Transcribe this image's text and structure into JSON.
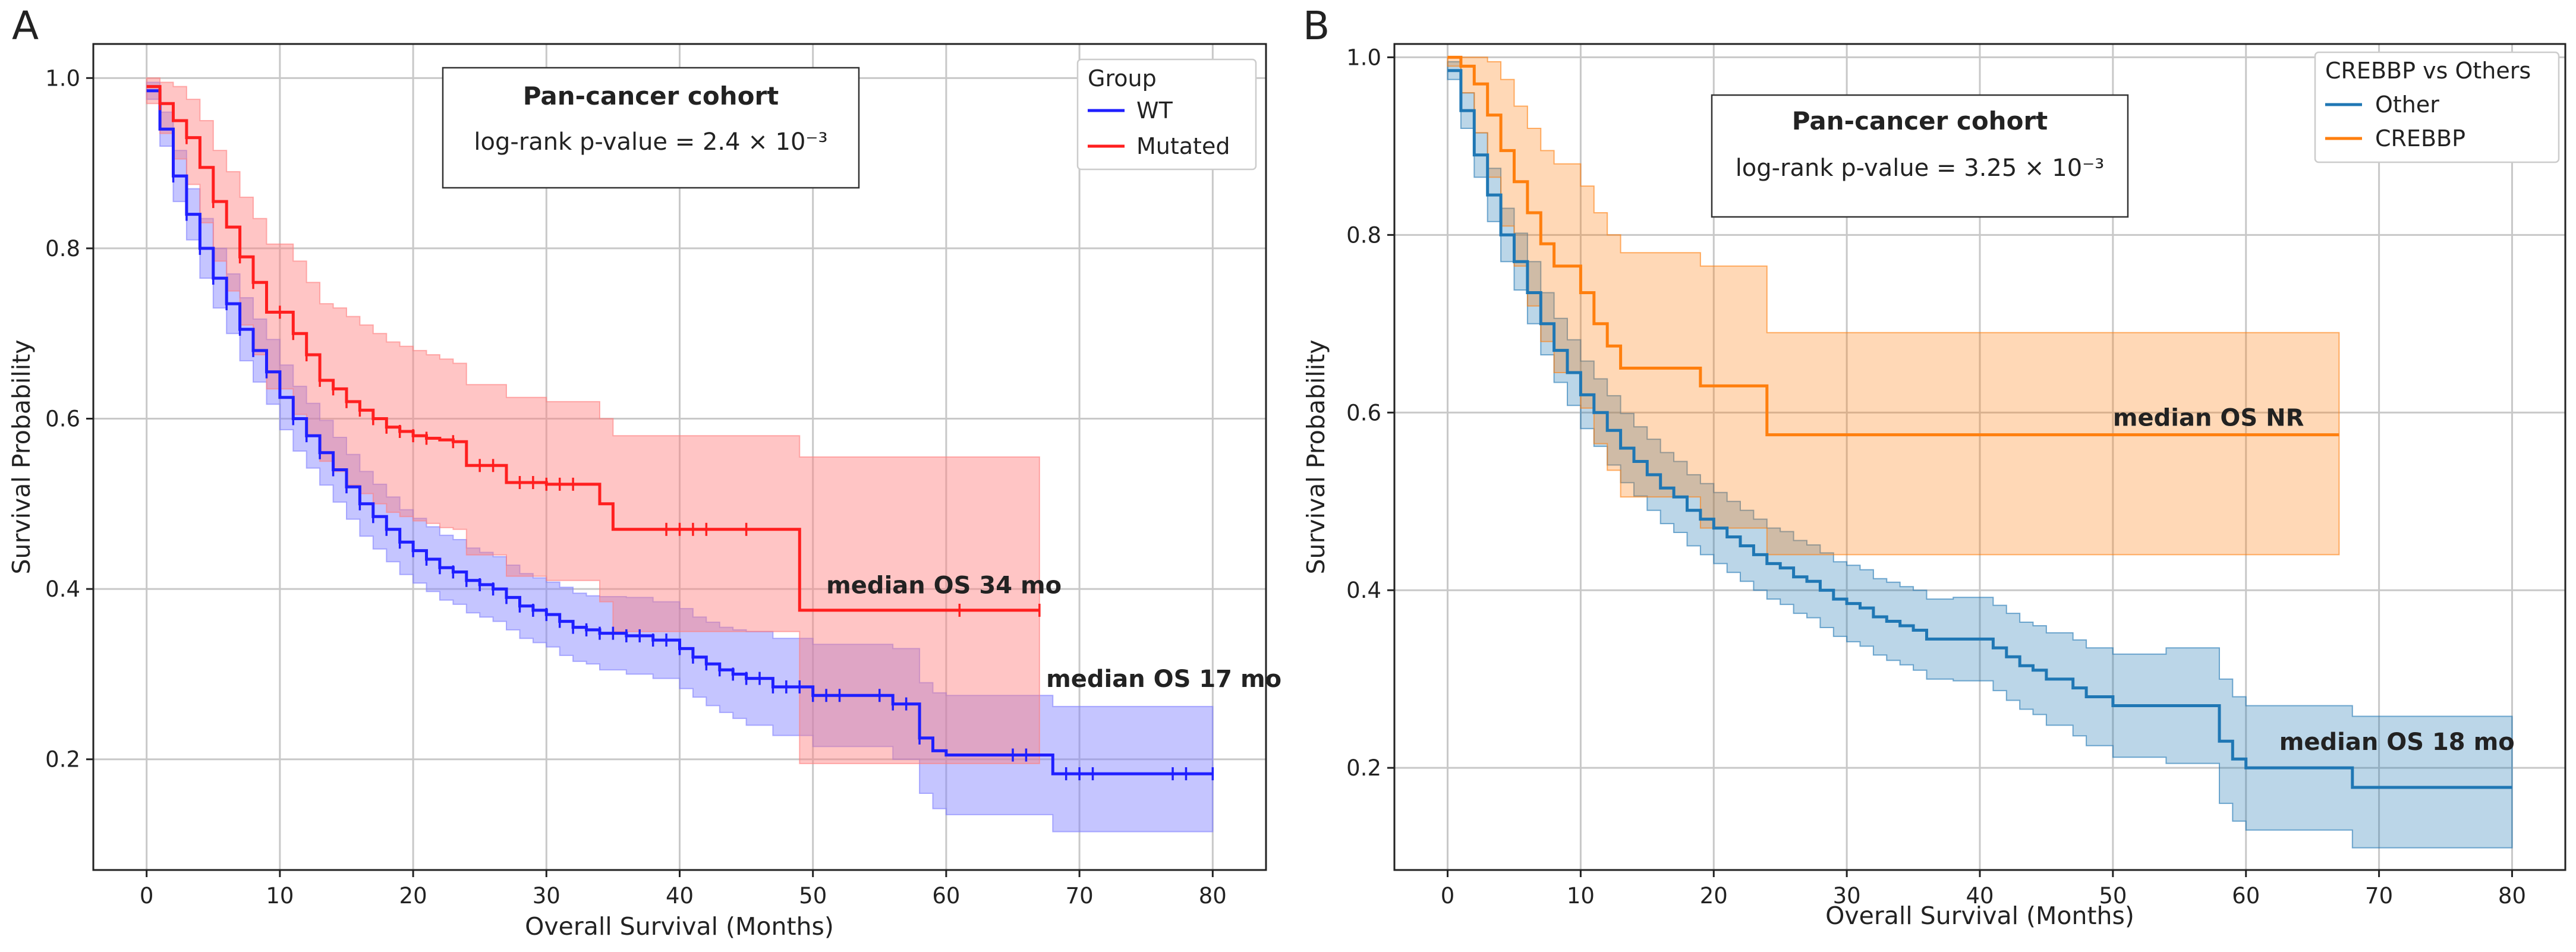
{
  "colors": {
    "A_WT": "#1f1fff",
    "A_Mutated": "#ff1f1f",
    "A_WT_band": "#7f7fff",
    "A_Mutated_band": "#ff7f7f",
    "B_Other": "#1f77b4",
    "B_CREBBP": "#ff7f0e"
  },
  "chart_data": [
    {
      "panel": "A",
      "type": "line",
      "subtype": "kaplan-meier",
      "xlabel": "Overall Survival (Months)",
      "ylabel": "Survival Probability",
      "xlim": [
        -4,
        84
      ],
      "ylim": [
        0.07,
        1.04
      ],
      "xticks": [
        0,
        10,
        20,
        30,
        40,
        50,
        60,
        70,
        80
      ],
      "yticks": [
        0.2,
        0.4,
        0.6,
        0.8,
        1.0
      ],
      "grid": true,
      "annotation_box": {
        "title": "Pan-cancer cohort",
        "text": "log-rank p-value = 2.4 × 10⁻³"
      },
      "legend": {
        "title": "Group",
        "entries": [
          "WT",
          "Mutated"
        ],
        "placement": "top-right"
      },
      "medians": [
        {
          "text": "median OS 34 mo",
          "x": 51,
          "y": 0.395
        },
        {
          "text": "median OS 17 mo",
          "x": 67.5,
          "y": 0.285
        }
      ],
      "series": [
        {
          "name": "WT",
          "color": "#1f1fff",
          "band_color": "#7f7fff",
          "x": [
            0,
            1,
            2,
            3,
            4,
            5,
            6,
            7,
            8,
            9,
            10,
            11,
            12,
            13,
            14,
            15,
            16,
            17,
            18,
            19,
            20,
            21,
            22,
            23,
            24,
            25,
            26,
            27,
            28,
            29,
            30,
            31,
            32,
            33,
            34,
            36,
            38,
            40,
            41,
            42,
            43,
            44,
            45,
            47,
            50,
            56,
            58,
            59,
            60,
            68,
            80
          ],
          "y": [
            0.985,
            0.94,
            0.885,
            0.84,
            0.8,
            0.765,
            0.735,
            0.705,
            0.68,
            0.655,
            0.625,
            0.6,
            0.58,
            0.56,
            0.54,
            0.52,
            0.5,
            0.485,
            0.47,
            0.455,
            0.445,
            0.435,
            0.425,
            0.42,
            0.41,
            0.405,
            0.4,
            0.39,
            0.38,
            0.375,
            0.37,
            0.362,
            0.355,
            0.352,
            0.348,
            0.345,
            0.34,
            0.33,
            0.32,
            0.312,
            0.305,
            0.3,
            0.295,
            0.285,
            0.275,
            0.265,
            0.225,
            0.21,
            0.205,
            0.183,
            0.183
          ],
          "ci_lower": [
            0.975,
            0.92,
            0.855,
            0.81,
            0.765,
            0.73,
            0.7,
            0.668,
            0.643,
            0.617,
            0.587,
            0.562,
            0.542,
            0.522,
            0.502,
            0.482,
            0.462,
            0.447,
            0.432,
            0.417,
            0.407,
            0.397,
            0.387,
            0.382,
            0.372,
            0.367,
            0.362,
            0.352,
            0.342,
            0.337,
            0.332,
            0.322,
            0.315,
            0.312,
            0.305,
            0.3,
            0.295,
            0.283,
            0.273,
            0.263,
            0.255,
            0.248,
            0.24,
            0.228,
            0.215,
            0.2,
            0.16,
            0.142,
            0.135,
            0.115,
            0.115
          ],
          "ci_upper": [
            0.995,
            0.96,
            0.915,
            0.87,
            0.835,
            0.8,
            0.77,
            0.742,
            0.717,
            0.693,
            0.663,
            0.638,
            0.618,
            0.598,
            0.578,
            0.558,
            0.538,
            0.523,
            0.508,
            0.493,
            0.483,
            0.473,
            0.463,
            0.458,
            0.448,
            0.443,
            0.438,
            0.428,
            0.418,
            0.413,
            0.408,
            0.402,
            0.395,
            0.392,
            0.391,
            0.39,
            0.385,
            0.377,
            0.367,
            0.361,
            0.355,
            0.352,
            0.35,
            0.342,
            0.335,
            0.33,
            0.29,
            0.278,
            0.275,
            0.262,
            0.262
          ],
          "censored": [
            2,
            3,
            4,
            5,
            6,
            7,
            8,
            9,
            11,
            12,
            13,
            14,
            15,
            16,
            17,
            18,
            19,
            20,
            21,
            22,
            23,
            24,
            25,
            26,
            27,
            28,
            29,
            30,
            31,
            32,
            33,
            34,
            35,
            36,
            37,
            38,
            39,
            40,
            41,
            42,
            43,
            44,
            45,
            46,
            47,
            48,
            49,
            50,
            51,
            52,
            55,
            56,
            57,
            58,
            65,
            66,
            69,
            70,
            71,
            77,
            78,
            80
          ]
        },
        {
          "name": "Mutated",
          "color": "#ff1f1f",
          "band_color": "#ff7f7f",
          "x": [
            0,
            1,
            2,
            3,
            4,
            5,
            6,
            7,
            8,
            9,
            11,
            12,
            13,
            14,
            15,
            16,
            17,
            18,
            19,
            20,
            21,
            22,
            23,
            24,
            27,
            30,
            34,
            35,
            49,
            67
          ],
          "y": [
            0.99,
            0.97,
            0.95,
            0.93,
            0.895,
            0.855,
            0.825,
            0.79,
            0.76,
            0.725,
            0.7,
            0.675,
            0.645,
            0.635,
            0.62,
            0.61,
            0.6,
            0.59,
            0.585,
            0.58,
            0.577,
            0.575,
            0.573,
            0.545,
            0.525,
            0.523,
            0.5,
            0.47,
            0.375,
            0.375
          ],
          "ci_lower": [
            0.97,
            0.935,
            0.905,
            0.875,
            0.83,
            0.785,
            0.75,
            0.71,
            0.675,
            0.635,
            0.605,
            0.58,
            0.55,
            0.538,
            0.522,
            0.512,
            0.5,
            0.49,
            0.485,
            0.48,
            0.477,
            0.472,
            0.47,
            0.44,
            0.415,
            0.41,
            0.385,
            0.35,
            0.195,
            0.195
          ],
          "ci_upper": [
            1.0,
            0.995,
            0.99,
            0.975,
            0.95,
            0.915,
            0.89,
            0.86,
            0.835,
            0.805,
            0.785,
            0.76,
            0.735,
            0.73,
            0.72,
            0.71,
            0.7,
            0.69,
            0.685,
            0.68,
            0.675,
            0.67,
            0.665,
            0.64,
            0.625,
            0.62,
            0.6,
            0.58,
            0.555,
            0.555
          ],
          "censored": [
            1,
            3,
            5,
            7,
            8,
            10,
            11,
            12,
            13,
            14,
            15,
            16,
            17,
            18,
            19,
            20,
            21,
            23,
            25,
            26,
            28,
            29,
            30,
            31,
            32,
            39,
            40,
            41,
            42,
            45,
            61,
            67
          ]
        }
      ]
    },
    {
      "panel": "B",
      "type": "line",
      "subtype": "kaplan-meier",
      "xlabel": "Overall Survival (Months)",
      "ylabel": "Survival Probability",
      "xlim": [
        -4,
        84
      ],
      "ylim": [
        0.085,
        1.015
      ],
      "xticks": [
        0,
        10,
        20,
        30,
        40,
        50,
        60,
        70,
        80
      ],
      "yticks": [
        0.2,
        0.4,
        0.6,
        0.8,
        1.0
      ],
      "grid": true,
      "annotation_box": {
        "title": "Pan-cancer cohort",
        "text": "log-rank p-value = 3.25 × 10⁻³"
      },
      "legend": {
        "title": "CREBBP  vs  Others",
        "entries": [
          "Other",
          "CREBBP"
        ],
        "placement": "top-right"
      },
      "medians": [
        {
          "text": "median OS NR",
          "x": 50,
          "y": 0.585
        },
        {
          "text": "median OS 18 mo",
          "x": 62.5,
          "y": 0.22
        }
      ],
      "series": [
        {
          "name": "Other",
          "color": "#1f77b4",
          "band_color": "#1f77b4",
          "x": [
            0,
            1,
            2,
            3,
            4,
            5,
            6,
            7,
            8,
            9,
            10,
            11,
            12,
            13,
            14,
            15,
            16,
            17,
            18,
            19,
            20,
            21,
            22,
            23,
            24,
            25,
            26,
            27,
            28,
            29,
            30,
            31,
            32,
            33,
            34,
            35,
            36,
            38,
            41,
            42,
            43,
            44,
            45,
            47,
            48,
            50,
            54,
            58,
            59,
            60,
            68,
            80
          ],
          "y": [
            0.985,
            0.94,
            0.89,
            0.845,
            0.8,
            0.77,
            0.735,
            0.7,
            0.67,
            0.645,
            0.62,
            0.6,
            0.58,
            0.56,
            0.545,
            0.53,
            0.515,
            0.505,
            0.49,
            0.48,
            0.47,
            0.46,
            0.45,
            0.44,
            0.43,
            0.425,
            0.415,
            0.41,
            0.4,
            0.39,
            0.385,
            0.38,
            0.37,
            0.365,
            0.36,
            0.355,
            0.345,
            0.345,
            0.335,
            0.325,
            0.315,
            0.31,
            0.3,
            0.29,
            0.28,
            0.27,
            0.27,
            0.23,
            0.21,
            0.2,
            0.178,
            0.178
          ],
          "ci_lower": [
            0.975,
            0.92,
            0.865,
            0.815,
            0.77,
            0.738,
            0.7,
            0.665,
            0.634,
            0.608,
            0.582,
            0.562,
            0.541,
            0.521,
            0.506,
            0.49,
            0.475,
            0.465,
            0.45,
            0.44,
            0.43,
            0.42,
            0.41,
            0.4,
            0.39,
            0.384,
            0.374,
            0.369,
            0.358,
            0.348,
            0.342,
            0.337,
            0.327,
            0.321,
            0.316,
            0.31,
            0.3,
            0.298,
            0.287,
            0.276,
            0.266,
            0.26,
            0.248,
            0.236,
            0.225,
            0.212,
            0.205,
            0.16,
            0.14,
            0.13,
            0.11,
            0.11
          ],
          "ci_upper": [
            0.995,
            0.96,
            0.915,
            0.875,
            0.83,
            0.802,
            0.77,
            0.735,
            0.706,
            0.682,
            0.658,
            0.638,
            0.619,
            0.599,
            0.584,
            0.57,
            0.555,
            0.545,
            0.53,
            0.52,
            0.51,
            0.5,
            0.49,
            0.48,
            0.47,
            0.466,
            0.456,
            0.451,
            0.442,
            0.432,
            0.428,
            0.423,
            0.413,
            0.409,
            0.404,
            0.4,
            0.39,
            0.392,
            0.383,
            0.374,
            0.364,
            0.36,
            0.352,
            0.344,
            0.335,
            0.328,
            0.335,
            0.3,
            0.28,
            0.27,
            0.258,
            0.258
          ]
        },
        {
          "name": "CREBBP",
          "color": "#ff7f0e",
          "band_color": "#ff7f0e",
          "x": [
            0,
            1,
            2,
            3,
            4,
            5,
            6,
            7,
            8,
            10,
            11,
            12,
            13,
            19,
            24,
            67
          ],
          "y": [
            1.0,
            0.99,
            0.97,
            0.935,
            0.895,
            0.86,
            0.825,
            0.79,
            0.765,
            0.735,
            0.7,
            0.675,
            0.65,
            0.63,
            0.575,
            0.575
          ],
          "ci_lower": [
            0.99,
            0.96,
            0.915,
            0.865,
            0.81,
            0.765,
            0.72,
            0.68,
            0.645,
            0.605,
            0.565,
            0.535,
            0.505,
            0.47,
            0.44,
            0.44
          ],
          "ci_upper": [
            1.0,
            1.0,
            1.0,
            0.995,
            0.975,
            0.945,
            0.92,
            0.895,
            0.88,
            0.855,
            0.825,
            0.8,
            0.78,
            0.765,
            0.69,
            0.69
          ]
        }
      ]
    }
  ],
  "panels": {
    "A": {
      "letter": "A"
    },
    "B": {
      "letter": "B"
    }
  }
}
